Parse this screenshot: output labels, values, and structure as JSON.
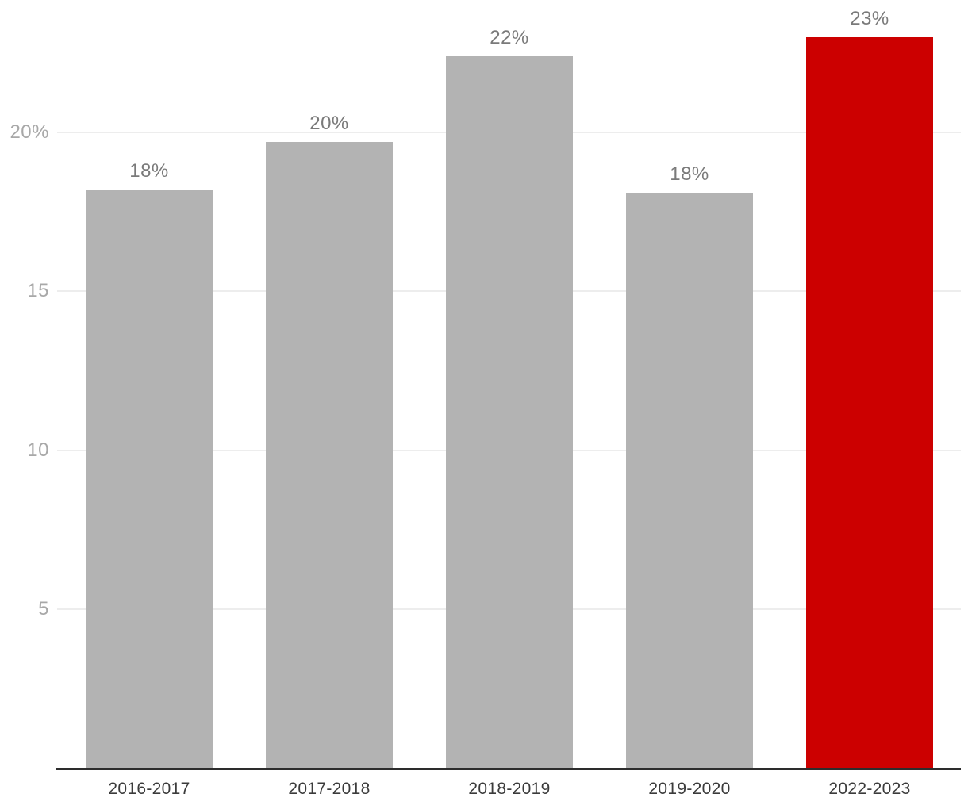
{
  "chart_data": {
    "type": "bar",
    "categories": [
      "2016-2017",
      "2017-2018",
      "2018-2019",
      "2019-2020",
      "2022-2023"
    ],
    "values": [
      18.2,
      19.7,
      22.4,
      18.1,
      23.0
    ],
    "data_labels": [
      "18%",
      "20%",
      "22%",
      "18%",
      "23%"
    ],
    "ylim": [
      0,
      23.5
    ],
    "yticks": [
      {
        "value": 5,
        "label": "5"
      },
      {
        "value": 10,
        "label": "10"
      },
      {
        "value": 15,
        "label": "15"
      },
      {
        "value": 20,
        "label": "20%"
      }
    ],
    "grid": true,
    "legend": false,
    "highlight_index": 4,
    "ylabel": "",
    "xlabel": ""
  },
  "colors": {
    "bar_default": "#b3b3b3",
    "bar_highlight": "#cc0000",
    "gridline": "#ededed",
    "axis_line": "#2d2d2d",
    "ytick_text": "#a8a8a8",
    "bar_label_text": "#7a7a7a",
    "xtick_text": "#3b3b3b",
    "background": "#ffffff"
  }
}
